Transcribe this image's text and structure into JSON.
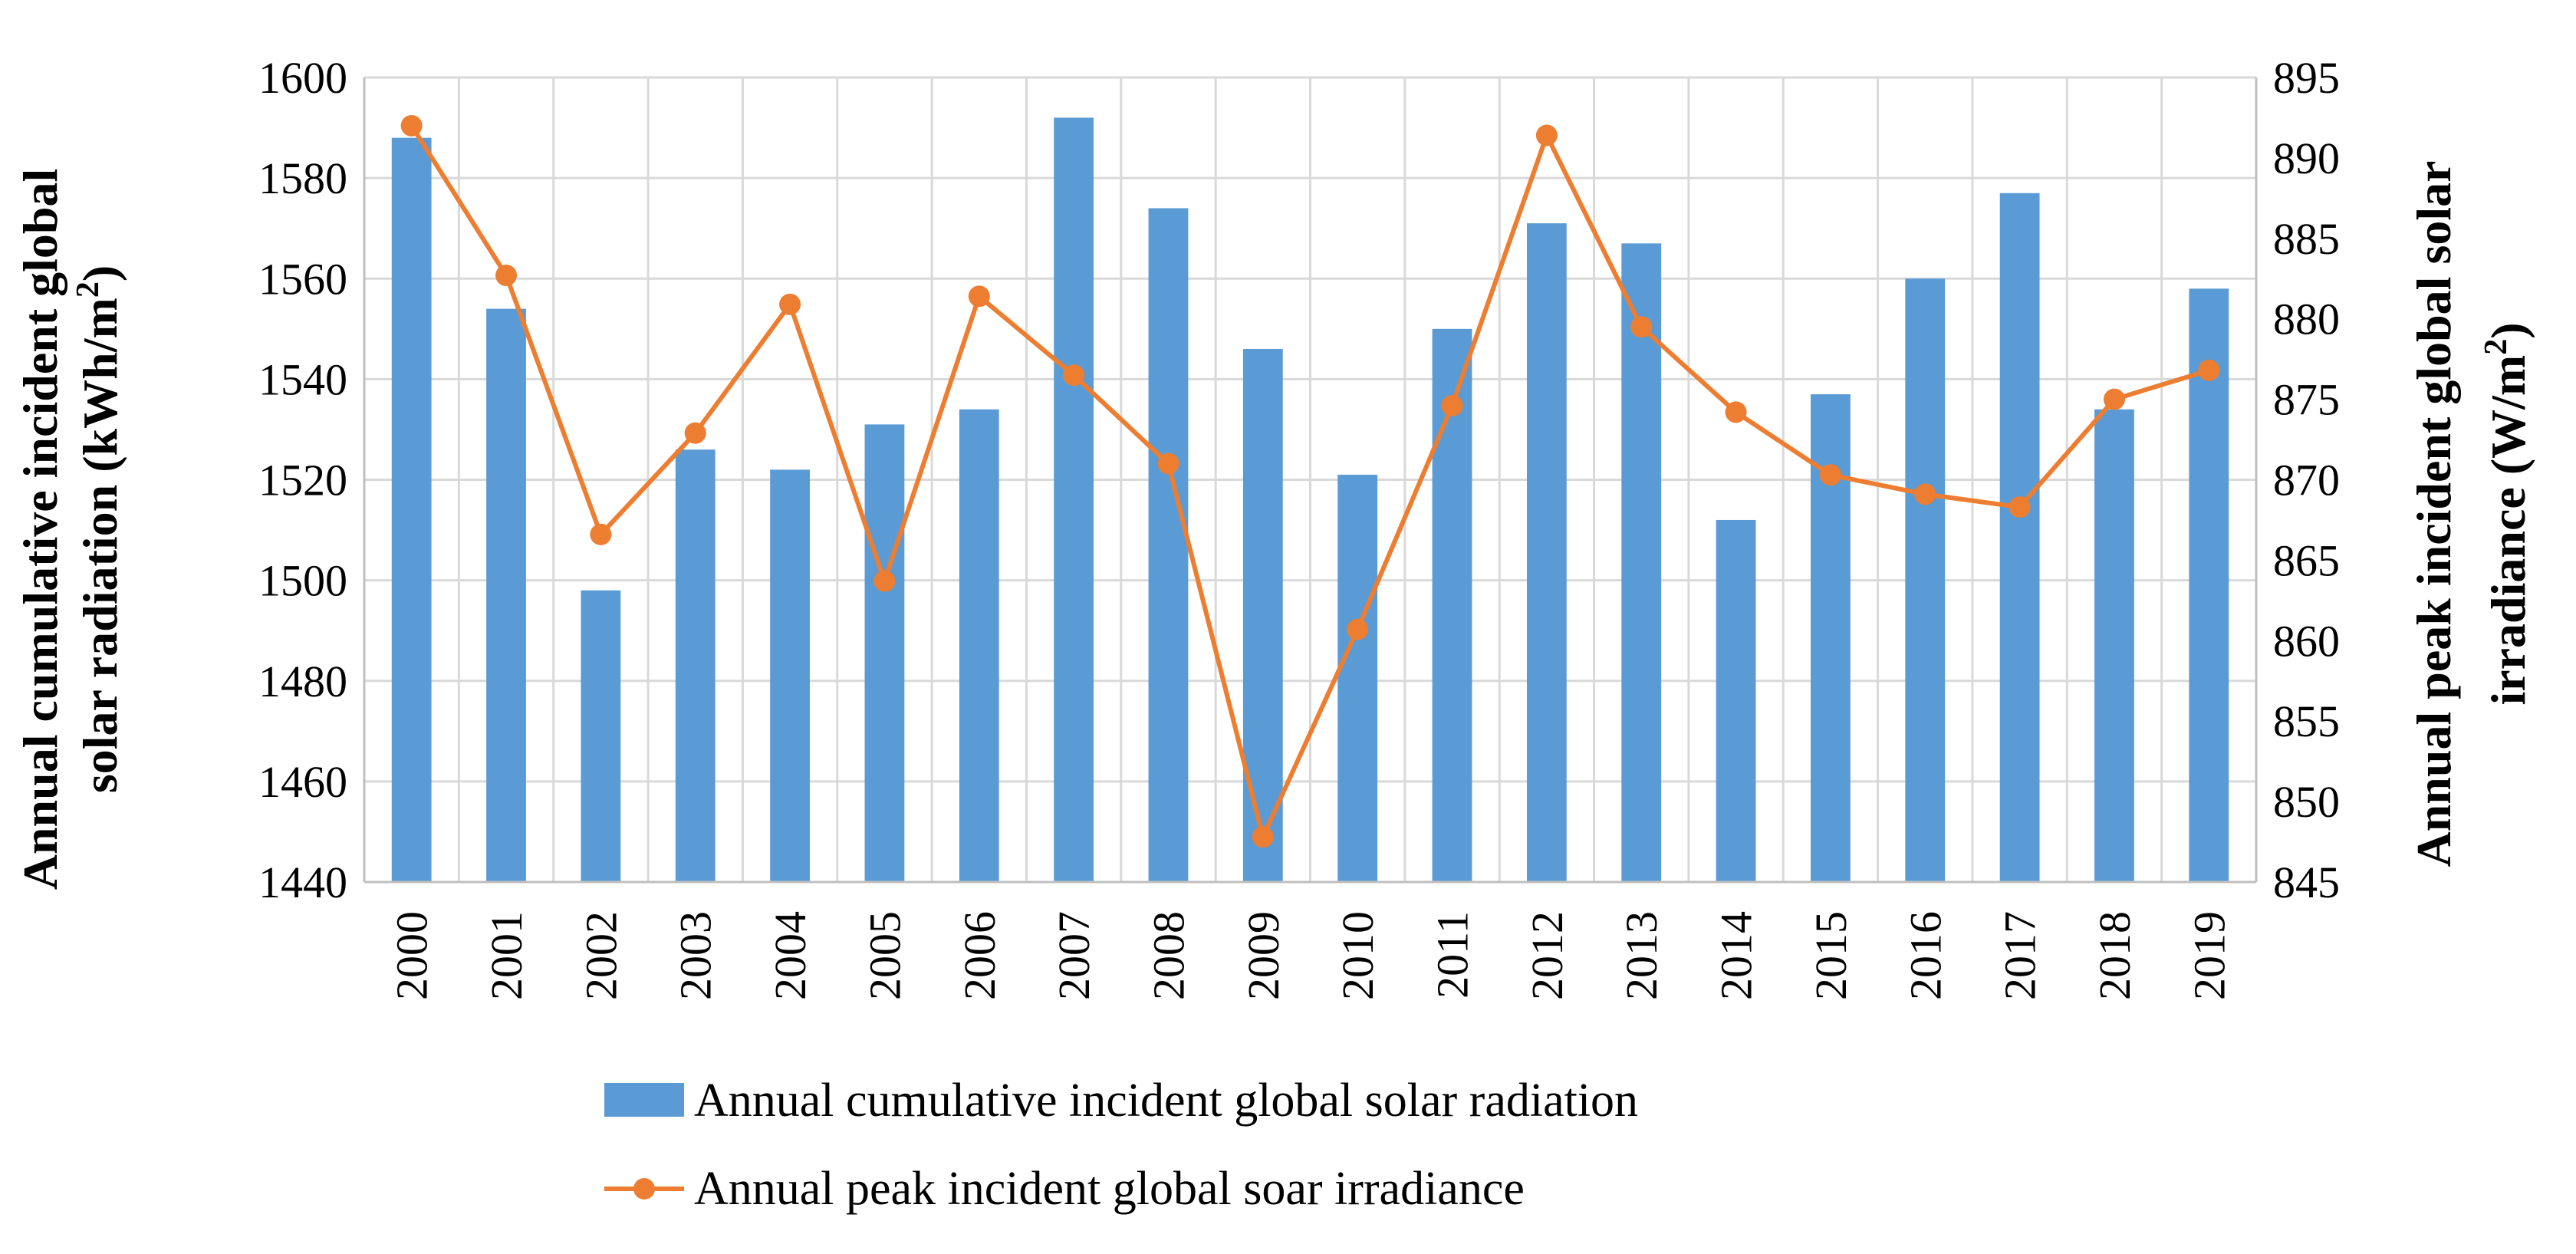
{
  "chart_data": {
    "type": "bar+line",
    "categories": [
      "2000",
      "2001",
      "2002",
      "2003",
      "2004",
      "2005",
      "2006",
      "2007",
      "2008",
      "2009",
      "2010",
      "2011",
      "2012",
      "2013",
      "2014",
      "2015",
      "2016",
      "2017",
      "2018",
      "2019"
    ],
    "series": [
      {
        "name": "Annual cumulative incident global solar radiation",
        "type": "bar",
        "axis": "left",
        "color": "#5b9bd5",
        "values": [
          1588,
          1554,
          1498,
          1526,
          1522,
          1531,
          1534,
          1592,
          1574,
          1546,
          1521,
          1550,
          1571,
          1567,
          1512,
          1537,
          1560,
          1577,
          1534,
          1558
        ]
      },
      {
        "name": "Annual peak incident global soar irradiance",
        "type": "line",
        "axis": "right",
        "color": "#ed7d31",
        "values": [
          892,
          882.7,
          866.6,
          872.9,
          880.9,
          863.7,
          881.4,
          876.5,
          871,
          847.8,
          860.7,
          874.6,
          891.4,
          879.5,
          874.2,
          870.3,
          869.1,
          868.3,
          875,
          876.8
        ]
      }
    ],
    "y_left": {
      "label_line1": "Annual cumulative incident global",
      "label_line2_prefix": "solar radiation (kWh/m",
      "label_line2_sup": "2",
      "label_line2_suffix": ")",
      "ylim": [
        1440,
        1600
      ],
      "ticks": [
        "1440",
        "1460",
        "1480",
        "1500",
        "1520",
        "1540",
        "1560",
        "1580",
        "1600"
      ]
    },
    "y_right": {
      "label_line1": "Annual peak incident global solar",
      "label_line2_prefix": "irradiance (W/m",
      "label_line2_sup": "2",
      "label_line2_suffix": ")",
      "ylim": [
        845,
        895
      ],
      "ticks": [
        "845",
        "850",
        "855",
        "860",
        "865",
        "870",
        "875",
        "880",
        "885",
        "890",
        "895"
      ]
    },
    "legend_position": "bottom",
    "grid": true
  }
}
